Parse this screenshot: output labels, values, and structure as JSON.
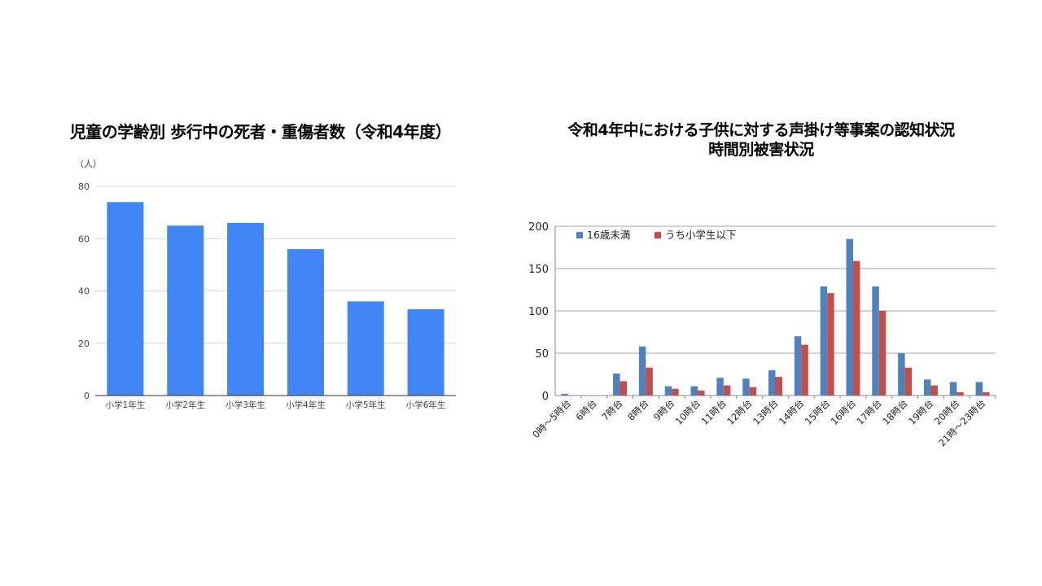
{
  "charts_meta": {
    "left_title": "児童の学齢別 歩行中の死者・重傷者数（令和4年度）",
    "right_title_line1": "令和4年中における子供に対する声掛け等事案の認知状況",
    "right_title_line2": "時間別被害状況"
  },
  "colors": {
    "left_bar": "#4285f4",
    "series_blue": "#4f81bd",
    "series_red": "#c0504d",
    "grid": "#d9d9d9",
    "axis": "#888888"
  },
  "chart_data": [
    {
      "type": "bar",
      "title": "児童の学齢別 歩行中の死者・重傷者数（令和4年度）",
      "unit_label": "（人）",
      "categories": [
        "小学1年生",
        "小学2年生",
        "小学3年生",
        "小学4年生",
        "小学5年生",
        "小学6年生"
      ],
      "values": [
        74,
        65,
        66,
        56,
        36,
        33
      ],
      "ylim": [
        0,
        80
      ],
      "yticks": [
        0,
        20,
        40,
        60,
        80
      ],
      "grid": true
    },
    {
      "type": "bar",
      "title": "令和4年中における子供に対する声掛け等事案の認知状況 時間別被害状況",
      "categories": [
        "0時～5時台",
        "6時台",
        "7時台",
        "8時台",
        "9時台",
        "10時台",
        "11時台",
        "12時台",
        "13時台",
        "14時台",
        "15時台",
        "16時台",
        "17時台",
        "18時台",
        "19時台",
        "20時台",
        "21時～23時台"
      ],
      "series": [
        {
          "name": "16歳未満",
          "values": [
            2,
            0,
            26,
            58,
            11,
            11,
            21,
            20,
            30,
            70,
            129,
            185,
            129,
            50,
            19,
            16,
            16
          ]
        },
        {
          "name": "うち小学生以下",
          "values": [
            0,
            0,
            17,
            33,
            8,
            6,
            12,
            10,
            22,
            60,
            121,
            159,
            100,
            33,
            12,
            4,
            4
          ]
        }
      ],
      "ylim": [
        0,
        200
      ],
      "yticks": [
        0,
        50,
        100,
        150,
        200
      ],
      "grid": true,
      "legend_position": "top-left"
    }
  ]
}
